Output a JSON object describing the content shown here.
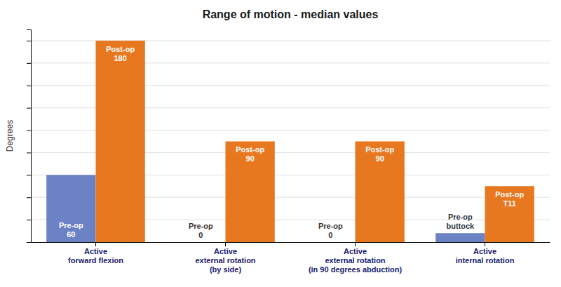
{
  "chart_data": {
    "type": "bar",
    "title": "Range of motion - median values",
    "y_label": "Degrees",
    "categories": [
      "Active\nforward flexion",
      "Active\nexternal rotation\n(by side)",
      "Active\nexternal rotation\n(in 90 degrees abduction)",
      "Active\ninternal rotation"
    ],
    "series": [
      {
        "color": "#6b82c4",
        "values": [
          60,
          0,
          0,
          8
        ],
        "value_labels": [
          "Pre-op\n60",
          "Pre-op\n0",
          "Pre-op\n0",
          "Pre-op\nbuttock"
        ]
      },
      {
        "color": "#e87820",
        "values": [
          180,
          90,
          90,
          50
        ],
        "value_labels": [
          "Post-op\n180",
          "Post-op\n90",
          "Post-op\n90",
          "Post-op\nT11"
        ]
      }
    ],
    "ylim": [
      0,
      190
    ],
    "yticks": [
      20,
      40,
      60,
      80,
      100,
      120,
      140,
      160,
      180
    ],
    "grid": true,
    "data_labels": true,
    "tick_labels": "x"
  }
}
